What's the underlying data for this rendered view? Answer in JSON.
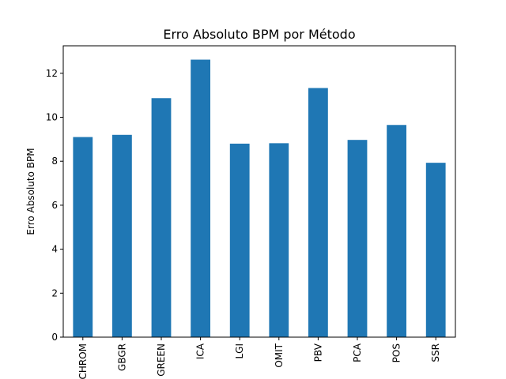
{
  "chart_data": {
    "type": "bar",
    "title": "Erro Absoluto BPM por Método",
    "xlabel": "",
    "ylabel": "Erro Absoluto BPM",
    "categories": [
      "CHROM",
      "GBGR",
      "GREEN",
      "ICA",
      "LGI",
      "OMIT",
      "PBV",
      "PCA",
      "POS",
      "SSR"
    ],
    "values": [
      9.1,
      9.2,
      10.87,
      12.62,
      8.8,
      8.82,
      11.33,
      8.97,
      9.65,
      7.93
    ],
    "ylim": [
      0,
      13.25
    ],
    "yticks": [
      0,
      2,
      4,
      6,
      8,
      10,
      12
    ],
    "grid": false,
    "bar_color": "#1f77b4"
  }
}
